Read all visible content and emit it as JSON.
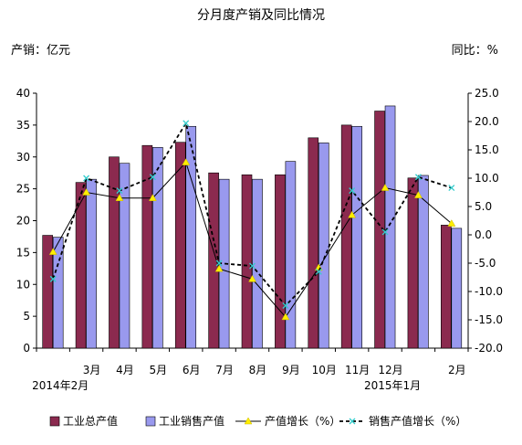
{
  "chart_data": {
    "type": "bar",
    "title": "分月度产销及同比情况",
    "left_unit_label": "产销：亿元",
    "right_unit_label": "同比：%",
    "categories": [
      "",
      "3月",
      "4月",
      "5月",
      "6月",
      "7月",
      "8月",
      "9月",
      "10月",
      "11月",
      "12月",
      "",
      "2月"
    ],
    "category_sub_labels": [
      {
        "index": 0,
        "text": "2014年2月"
      },
      {
        "index": 10,
        "text": "2015年1月"
      }
    ],
    "y_left": {
      "min": 0,
      "max": 40,
      "step": 5,
      "ticks": [
        "0",
        "5",
        "10",
        "15",
        "20",
        "25",
        "30",
        "35",
        "40"
      ]
    },
    "y_right": {
      "min": -20,
      "max": 25,
      "step": 5,
      "ticks": [
        "-20.0",
        "-15.0",
        "-10.0",
        "-5.0",
        "0.0",
        "5.0",
        "10.0",
        "15.0",
        "20.0",
        "25.0"
      ]
    },
    "grid": false,
    "legend_position": "bottom",
    "series": [
      {
        "name": "工业总产值",
        "type": "bar",
        "axis": "left",
        "color": "#8b2a4f",
        "values": [
          17.7,
          26.0,
          30.0,
          31.8,
          32.3,
          27.5,
          27.2,
          27.2,
          33.0,
          35.0,
          37.2,
          26.7,
          19.3
        ]
      },
      {
        "name": "工业销售产值",
        "type": "bar",
        "axis": "left",
        "color": "#9999ee",
        "values": [
          17.4,
          26.5,
          29.0,
          31.5,
          34.8,
          26.5,
          26.5,
          29.3,
          32.2,
          34.8,
          38.0,
          27.1,
          18.8
        ]
      },
      {
        "name": "产值增长（%）",
        "type": "line",
        "axis": "right",
        "color": "#000000",
        "marker_color": "#ffee00",
        "values": [
          -3.0,
          7.5,
          6.5,
          6.5,
          12.8,
          -6.0,
          -7.8,
          -14.5,
          -5.8,
          3.5,
          8.3,
          7.0,
          2.0
        ]
      },
      {
        "name": "销售产值增长（%）",
        "type": "line",
        "axis": "right",
        "color": "#000000",
        "marker_color": "#33cccc",
        "values": [
          -7.8,
          10.0,
          7.8,
          10.2,
          19.7,
          -5.0,
          -5.5,
          -12.5,
          -6.5,
          7.8,
          0.5,
          10.2,
          8.3
        ]
      }
    ]
  }
}
